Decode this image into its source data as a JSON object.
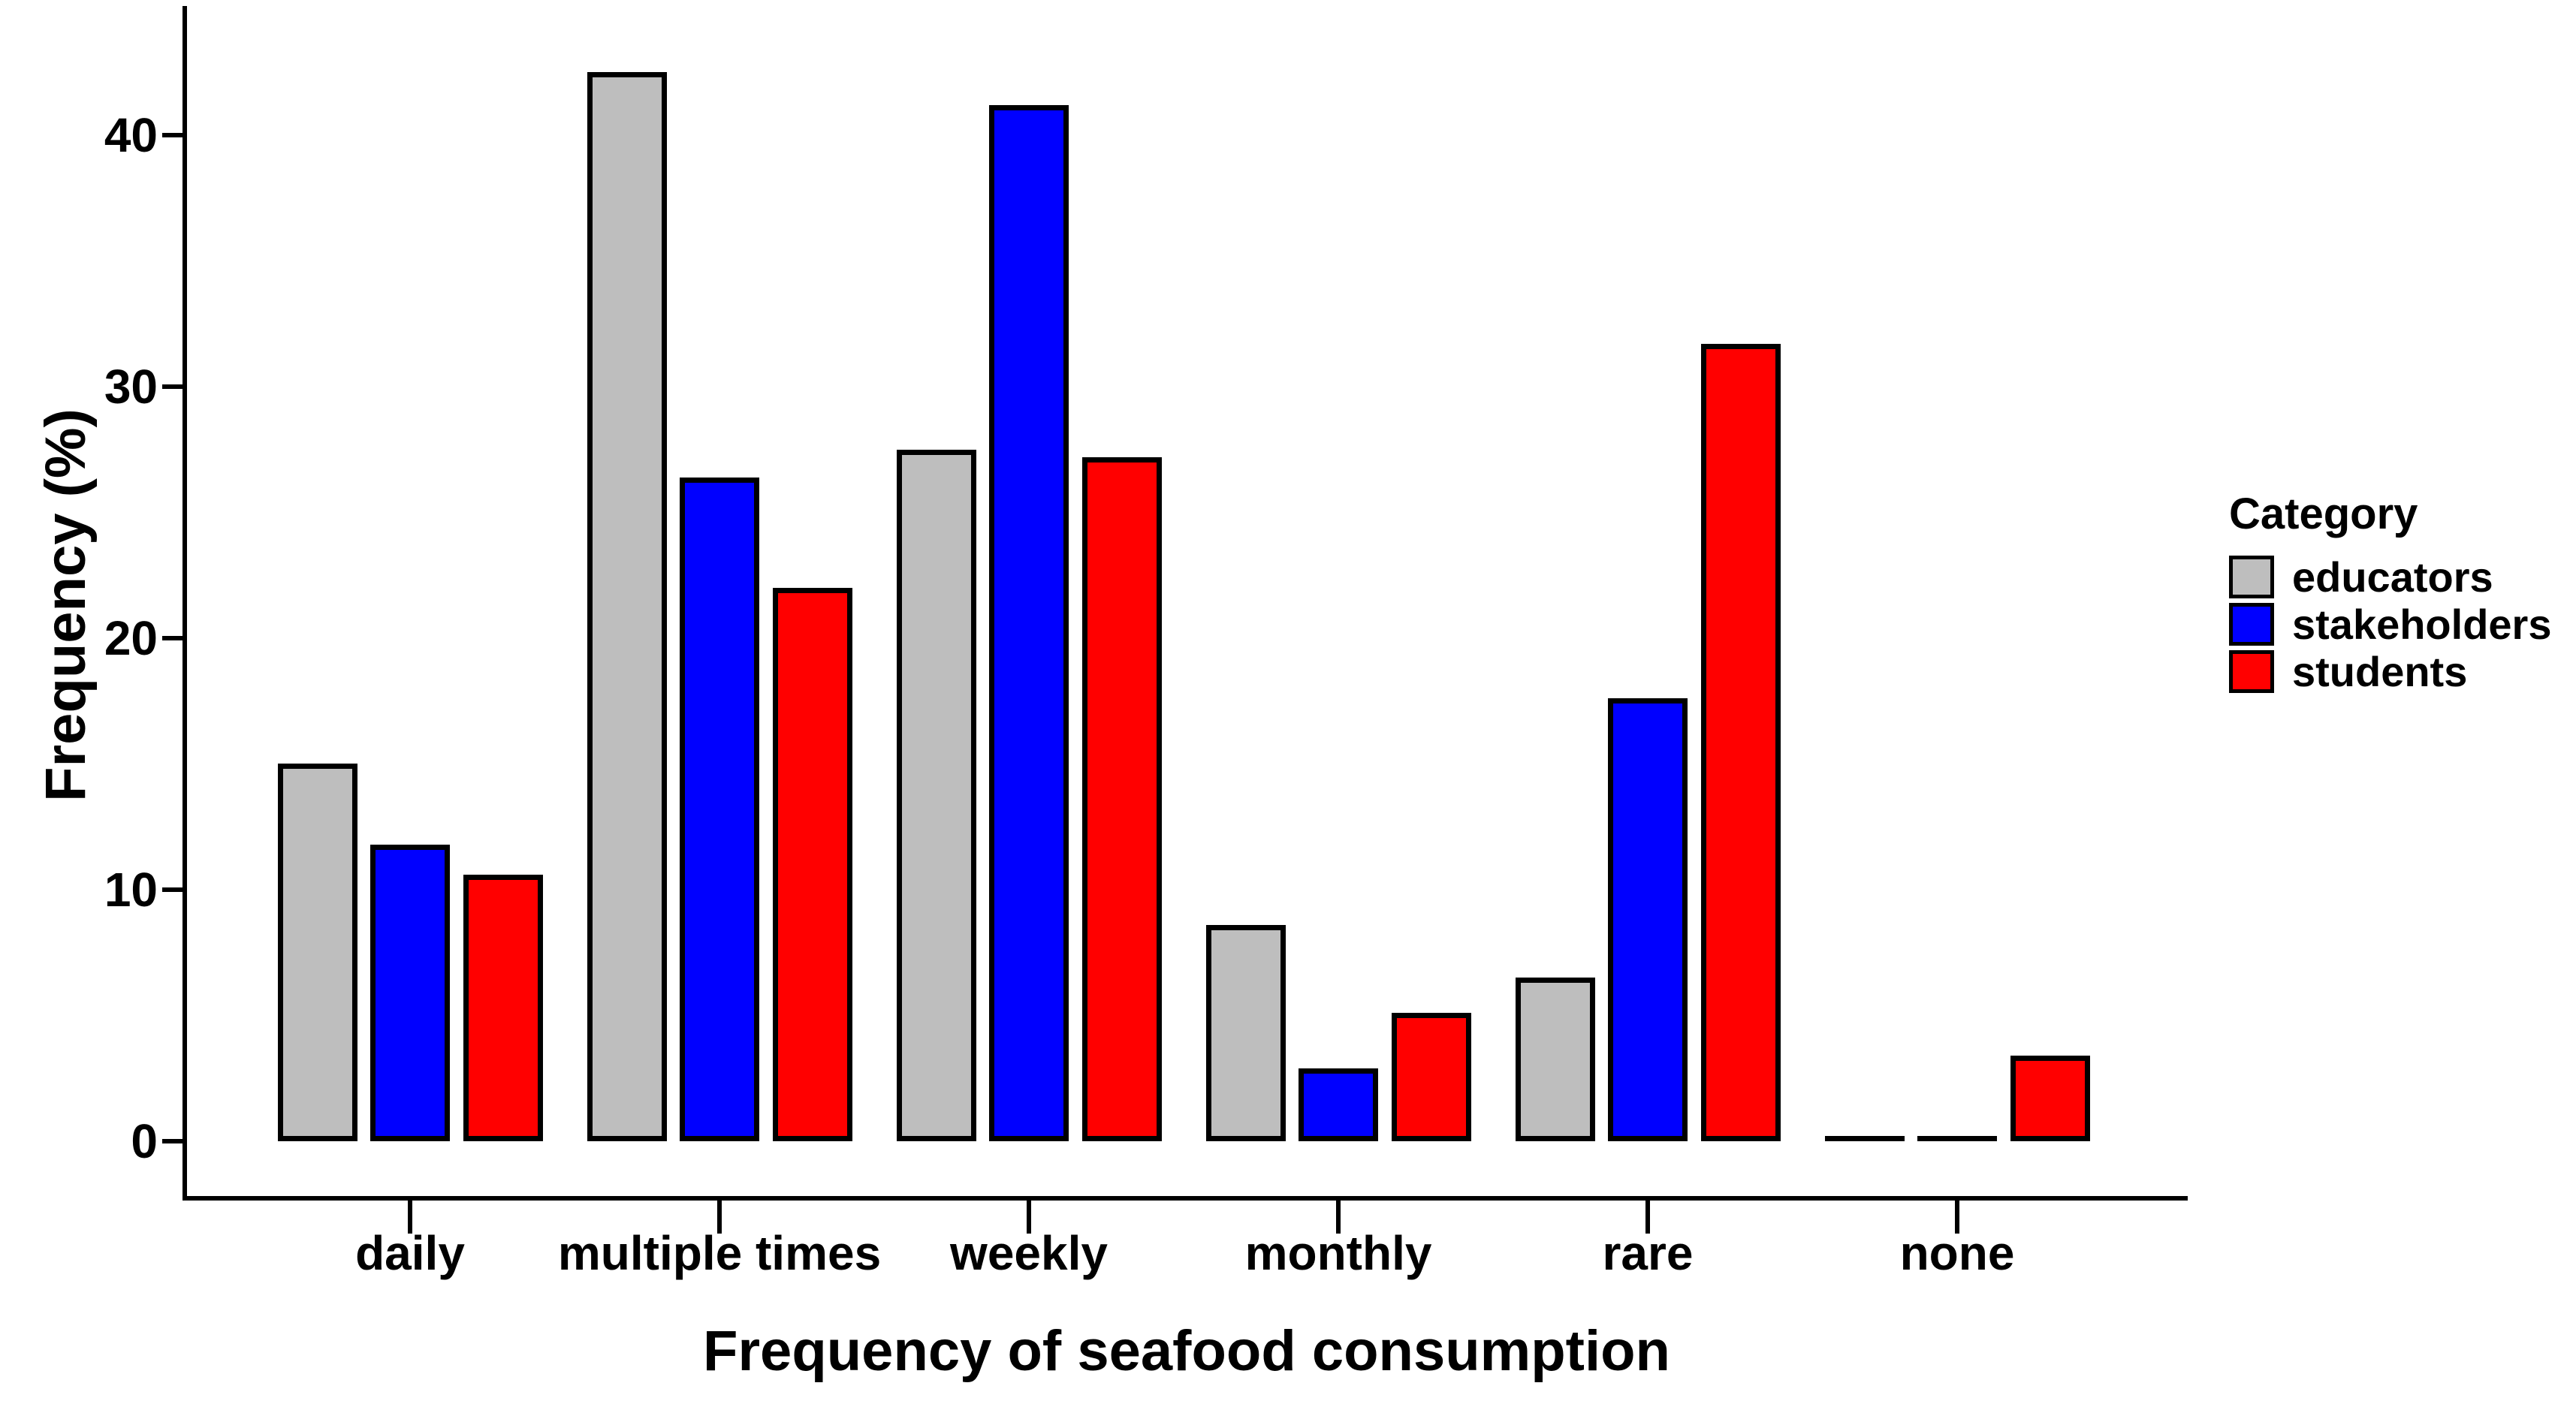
{
  "figure": {
    "background": "#FFFFFF",
    "axis_color": "#000000",
    "text_color": "#000000"
  },
  "chart_data": {
    "type": "bar",
    "title": "",
    "xlabel": "Frequency of seafood consumption",
    "ylabel": "Frequency (%)",
    "categories": [
      "daily",
      "multiple times",
      "weekly",
      "monthly",
      "rare",
      "none"
    ],
    "series": [
      {
        "name": "educators",
        "color": "#BEBEBE",
        "values": [
          15.0,
          42.5,
          27.5,
          8.6,
          6.5,
          0.0
        ]
      },
      {
        "name": "stakeholders",
        "color": "#0000FF",
        "values": [
          11.8,
          26.4,
          41.2,
          2.9,
          17.6,
          0.0
        ]
      },
      {
        "name": "students",
        "color": "#FF0000",
        "values": [
          10.6,
          22.0,
          27.2,
          5.1,
          31.7,
          3.4
        ]
      }
    ],
    "yticks": [
      "0",
      "10",
      "20",
      "30",
      "40"
    ],
    "ytick_values": [
      0,
      10,
      20,
      30,
      40
    ],
    "ylim": [
      0,
      43.7
    ],
    "grid": false,
    "bar_border_color": "#000000",
    "legend": {
      "title": "Category",
      "position": "right",
      "entries": [
        "educators",
        "stakeholders",
        "students"
      ]
    }
  }
}
